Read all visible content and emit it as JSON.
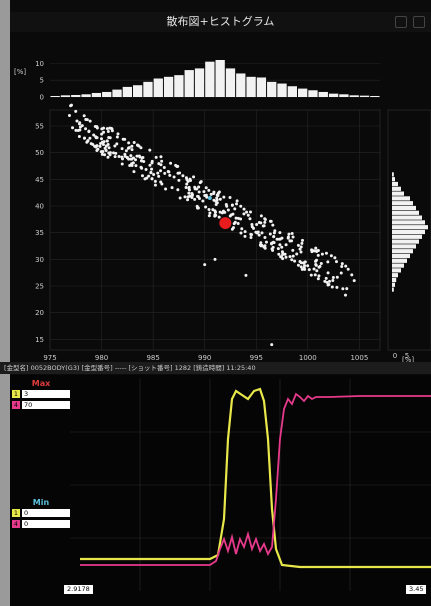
{
  "window": {
    "title": "散布図+ヒストグラム"
  },
  "colors": {
    "series1": "#e8e84a",
    "series2": "#e83a8c",
    "marker": "#e81c1c",
    "highlight": "#5bc0de",
    "points": "#f2f2f2"
  },
  "units": {
    "top_hist": "[%]",
    "right_hist": "[%]"
  },
  "top_histogram": {
    "yticks": [
      "10",
      "5",
      "0"
    ],
    "values": [
      0.3,
      0.5,
      0.6,
      0.8,
      1.2,
      1.5,
      2.2,
      3,
      3.5,
      4.5,
      5.5,
      6,
      6.5,
      8,
      8.5,
      10.5,
      11,
      8.5,
      7,
      6,
      5.8,
      4.5,
      4,
      3.2,
      2.5,
      2,
      1.5,
      1,
      0.8,
      0.5,
      0.4,
      0.3
    ]
  },
  "scatter": {
    "xticks": [
      "975",
      "980",
      "985",
      "990",
      "995",
      "1000",
      "1005"
    ],
    "yticks": [
      "55",
      "50",
      "45",
      "40",
      "35",
      "30",
      "25",
      "20",
      "15"
    ],
    "xlim": [
      975,
      1007
    ],
    "ylim": [
      13,
      58
    ],
    "marker": {
      "x": 992,
      "y": 36.8
    },
    "highlight": {
      "x": 990.5,
      "y": 41.5
    }
  },
  "right_histogram": {
    "xticks": [
      "0",
      "5"
    ],
    "values": [
      0.3,
      0.5,
      1,
      1.5,
      2,
      3,
      3.5,
      4,
      4.5,
      5,
      5.5,
      6,
      5.5,
      5,
      4.5,
      4,
      3.5,
      3,
      2.5,
      2,
      1.5,
      1,
      0.7,
      0.5,
      0.3
    ]
  },
  "info_bar": "[金型名] 0052BODY(G3)  [金型番号] -----  [ショット番号] 1282  [鋳造時間] 11:25:40",
  "legend_max": {
    "title": "Max",
    "rows": [
      {
        "idx": "1",
        "value": "3"
      },
      {
        "idx": "4",
        "value": "70"
      }
    ]
  },
  "legend_min": {
    "title": "Min",
    "rows": [
      {
        "idx": "1",
        "value": "0"
      },
      {
        "idx": "4",
        "value": "0"
      }
    ]
  },
  "waveform": {
    "start_label": "2.9178",
    "end_label": "3.45"
  }
}
